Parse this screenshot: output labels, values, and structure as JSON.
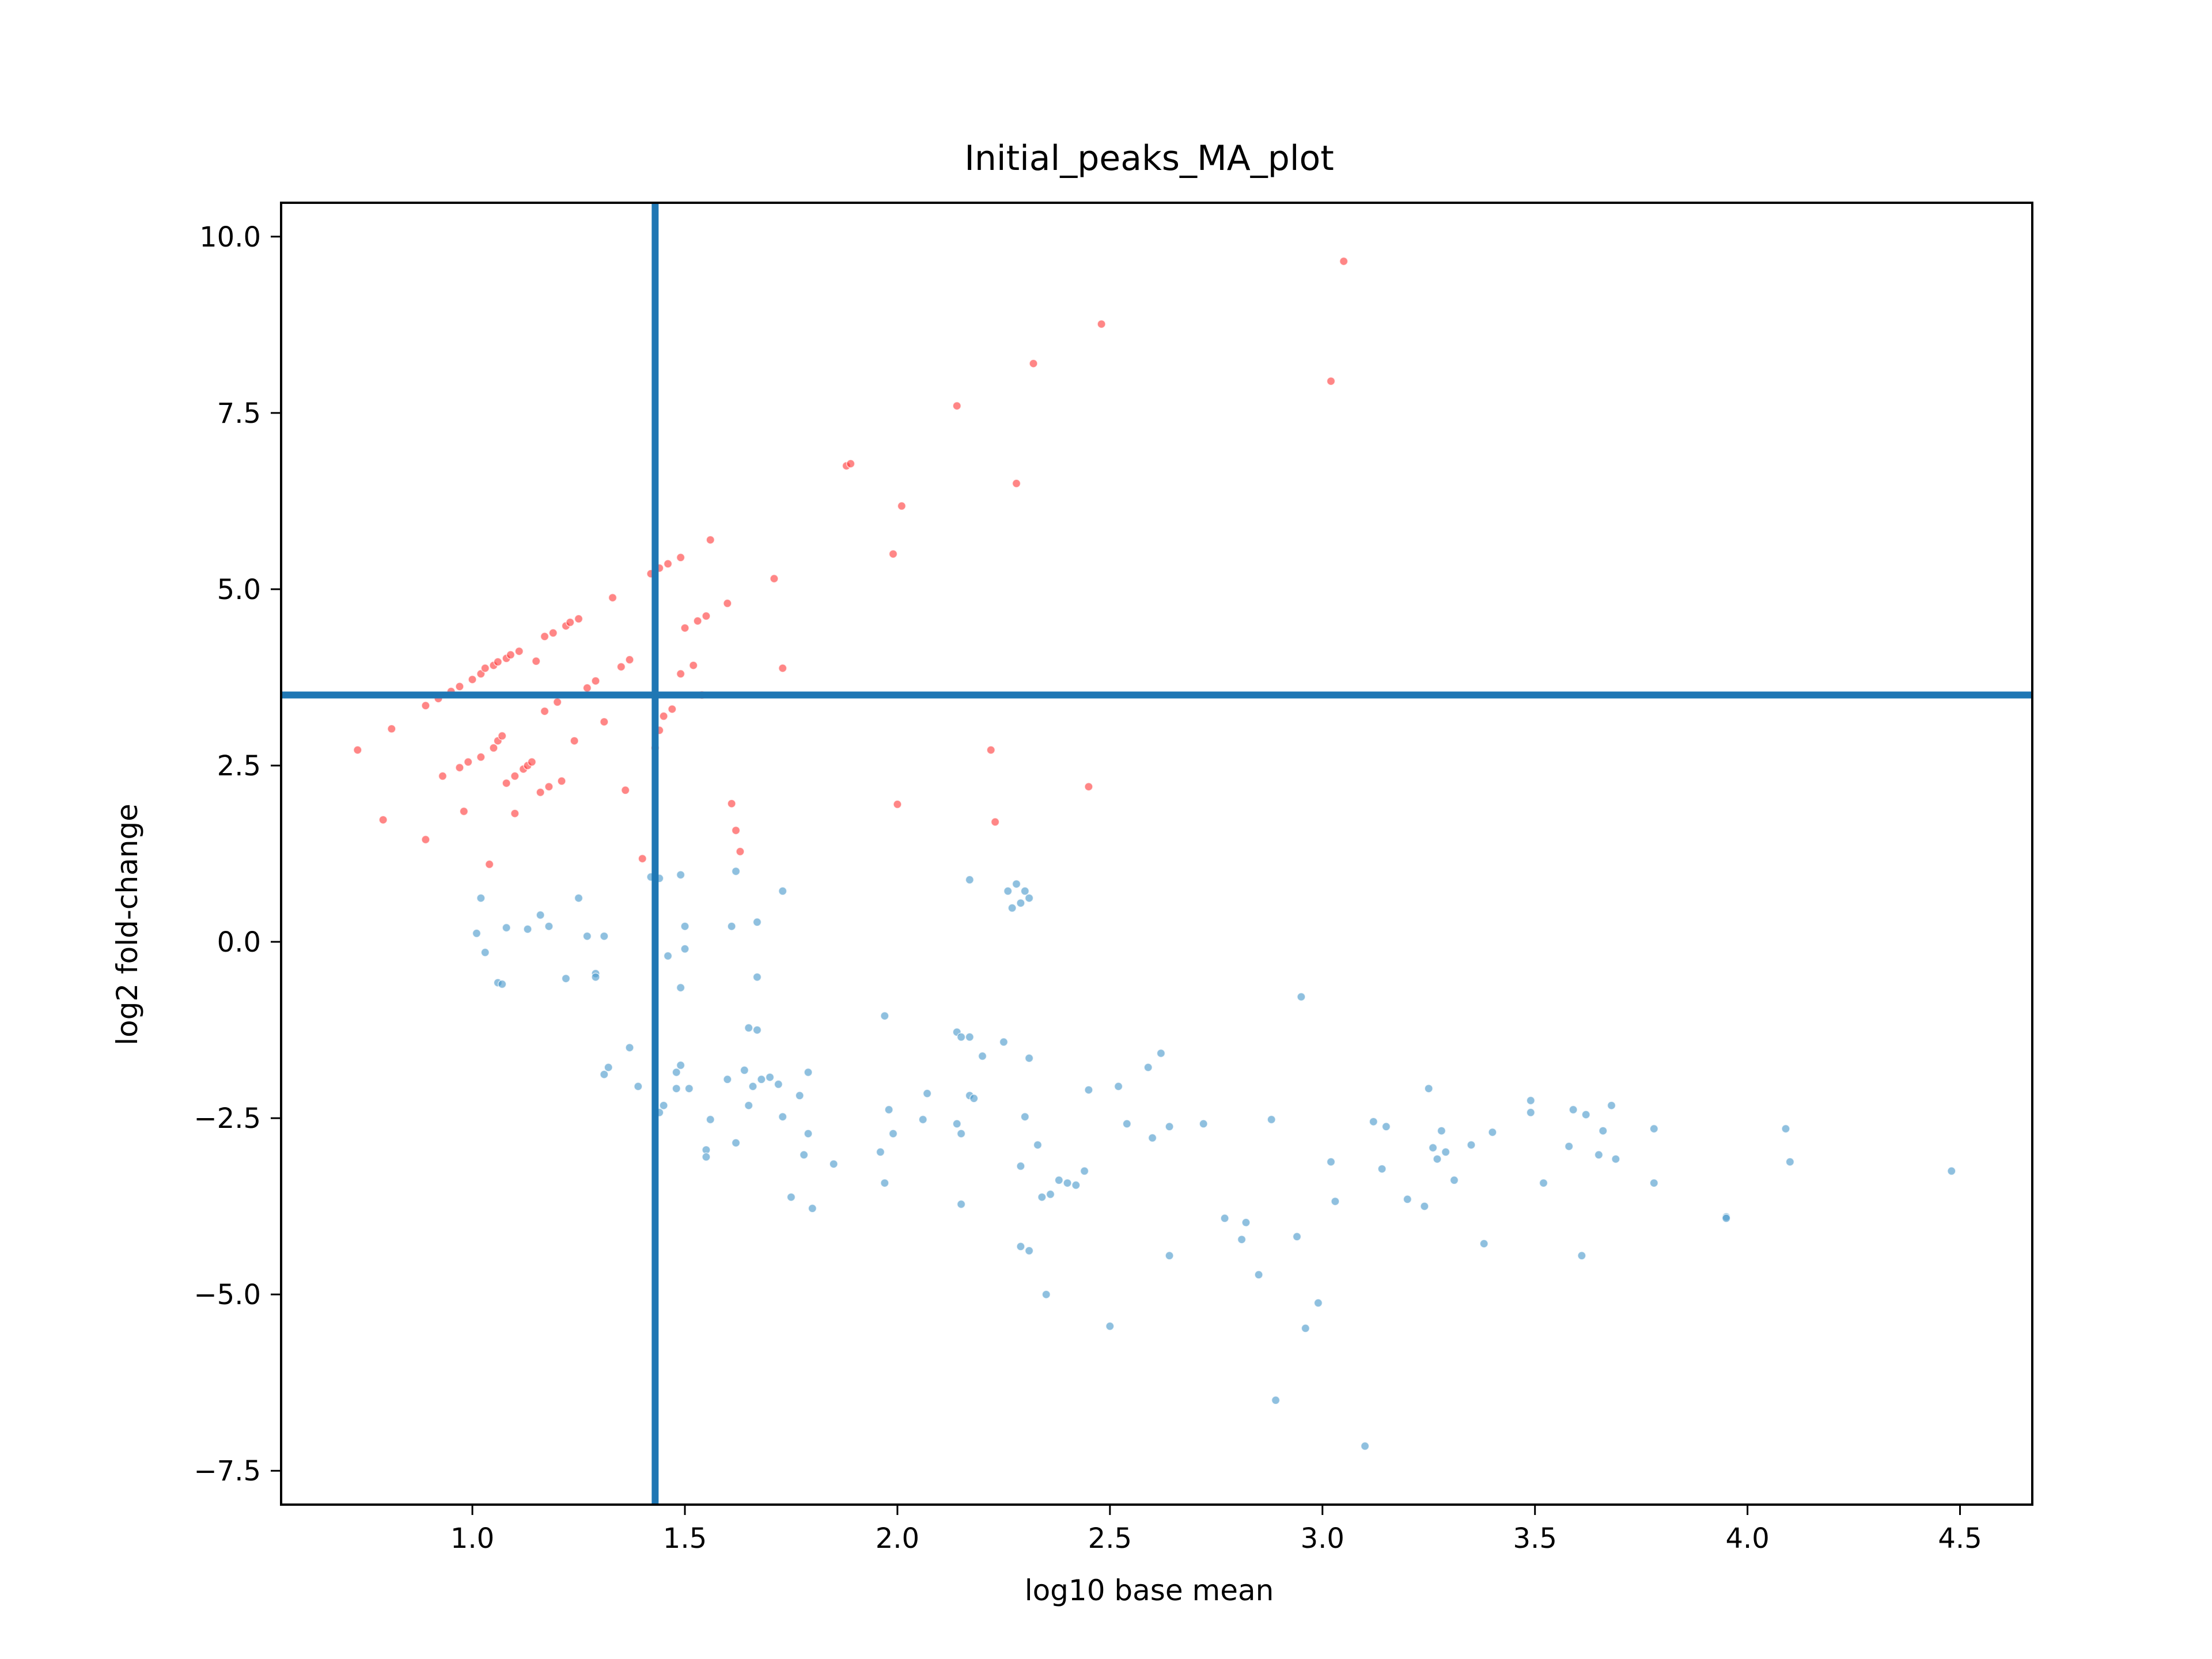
{
  "chart_data": {
    "type": "scatter",
    "title": "Initial_peaks_MA_plot",
    "xlabel": "log10 base mean",
    "ylabel": "log2 fold-change",
    "xlim": [
      0.55,
      4.67
    ],
    "ylim": [
      -7.98,
      10.48
    ],
    "xticks": [
      1.0,
      1.5,
      2.0,
      2.5,
      3.0,
      3.5,
      4.0,
      4.5
    ],
    "xtick_labels": [
      "1.0",
      "1.5",
      "2.0",
      "2.5",
      "3.0",
      "3.5",
      "4.0",
      "4.5"
    ],
    "yticks": [
      10.0,
      7.5,
      5.0,
      2.5,
      0.0,
      -2.5,
      -5.0,
      -7.5
    ],
    "ytick_labels": [
      "10.0",
      "7.5",
      "5.0",
      "2.5",
      "0.0",
      "−2.5",
      "−5.0",
      "−7.5"
    ],
    "grid": false,
    "colors": {
      "significant": "#ff3b3b",
      "nonsignificant": "#4a9acb",
      "threshold": "#1f77b4",
      "axes": "#000000"
    },
    "thresholds": {
      "vertical_x": 1.43,
      "horizontal_y": 3.5
    },
    "series": [
      {
        "color_key": "significant",
        "points": [
          [
            0.73,
            2.72
          ],
          [
            0.79,
            1.73
          ],
          [
            0.81,
            3.02
          ],
          [
            0.89,
            1.45
          ],
          [
            0.89,
            3.35
          ],
          [
            0.92,
            3.45
          ],
          [
            0.93,
            2.35
          ],
          [
            0.95,
            3.55
          ],
          [
            0.97,
            2.47
          ],
          [
            0.97,
            3.62
          ],
          [
            0.98,
            1.85
          ],
          [
            0.99,
            2.55
          ],
          [
            1.0,
            3.72
          ],
          [
            1.02,
            2.62
          ],
          [
            1.02,
            3.8
          ],
          [
            1.03,
            3.88
          ],
          [
            1.04,
            1.1
          ],
          [
            1.05,
            2.75
          ],
          [
            1.05,
            3.92
          ],
          [
            1.06,
            2.85
          ],
          [
            1.06,
            3.97
          ],
          [
            1.07,
            2.92
          ],
          [
            1.08,
            2.25
          ],
          [
            1.08,
            4.02
          ],
          [
            1.09,
            4.07
          ],
          [
            1.1,
            1.82
          ],
          [
            1.1,
            2.35
          ],
          [
            1.11,
            4.12
          ],
          [
            1.12,
            2.45
          ],
          [
            1.13,
            2.5
          ],
          [
            1.14,
            2.55
          ],
          [
            1.15,
            3.98
          ],
          [
            1.16,
            2.12
          ],
          [
            1.17,
            3.27
          ],
          [
            1.17,
            4.33
          ],
          [
            1.18,
            2.2
          ],
          [
            1.19,
            4.38
          ],
          [
            1.2,
            3.4
          ],
          [
            1.21,
            2.28
          ],
          [
            1.22,
            4.48
          ],
          [
            1.23,
            4.53
          ],
          [
            1.24,
            2.85
          ],
          [
            1.25,
            4.58
          ],
          [
            1.27,
            3.6
          ],
          [
            1.29,
            3.7
          ],
          [
            1.31,
            3.12
          ],
          [
            1.33,
            4.88
          ],
          [
            1.35,
            3.9
          ],
          [
            1.36,
            2.15
          ],
          [
            1.37,
            4.0
          ],
          [
            1.4,
            1.18
          ],
          [
            1.42,
            5.22
          ],
          [
            1.43,
            2.75
          ],
          [
            1.44,
            3.0
          ],
          [
            1.44,
            5.3
          ],
          [
            1.45,
            3.2
          ],
          [
            1.46,
            5.36
          ],
          [
            1.47,
            3.3
          ],
          [
            1.49,
            3.8
          ],
          [
            1.49,
            5.45
          ],
          [
            1.5,
            4.45
          ],
          [
            1.52,
            3.92
          ],
          [
            1.53,
            4.55
          ],
          [
            1.54,
            3.5
          ],
          [
            1.55,
            4.62
          ],
          [
            1.56,
            5.7
          ],
          [
            1.6,
            4.8
          ],
          [
            1.61,
            1.96
          ],
          [
            1.62,
            1.58
          ],
          [
            1.63,
            1.28
          ],
          [
            1.71,
            5.15
          ],
          [
            1.73,
            3.88
          ],
          [
            1.88,
            6.75
          ],
          [
            1.89,
            6.78
          ],
          [
            1.99,
            5.5
          ],
          [
            2.0,
            1.95
          ],
          [
            2.01,
            6.18
          ],
          [
            2.14,
            7.6
          ],
          [
            2.22,
            2.72
          ],
          [
            2.23,
            1.7
          ],
          [
            2.28,
            6.5
          ],
          [
            2.32,
            8.2
          ],
          [
            2.45,
            2.2
          ],
          [
            2.48,
            8.76
          ],
          [
            3.02,
            7.95
          ],
          [
            3.05,
            9.65
          ]
        ]
      },
      {
        "color_key": "nonsignificant",
        "points": [
          [
            1.01,
            0.12
          ],
          [
            1.02,
            0.62
          ],
          [
            1.03,
            -0.15
          ],
          [
            1.06,
            -0.58
          ],
          [
            1.07,
            -0.6
          ],
          [
            1.08,
            0.2
          ],
          [
            1.13,
            0.18
          ],
          [
            1.16,
            0.38
          ],
          [
            1.18,
            0.22
          ],
          [
            1.22,
            -0.52
          ],
          [
            1.25,
            0.62
          ],
          [
            1.27,
            0.08
          ],
          [
            1.29,
            -0.45
          ],
          [
            1.29,
            -0.5
          ],
          [
            1.31,
            0.08
          ],
          [
            1.31,
            -1.88
          ],
          [
            1.32,
            -1.78
          ],
          [
            1.37,
            -1.5
          ],
          [
            1.39,
            -2.05
          ],
          [
            1.42,
            0.92
          ],
          [
            1.44,
            0.9
          ],
          [
            1.44,
            -2.42
          ],
          [
            1.45,
            -2.32
          ],
          [
            1.46,
            -0.2
          ],
          [
            1.48,
            -1.85
          ],
          [
            1.48,
            -2.08
          ],
          [
            1.49,
            -1.75
          ],
          [
            1.49,
            -0.65
          ],
          [
            1.49,
            0.95
          ],
          [
            1.5,
            0.22
          ],
          [
            1.5,
            -0.1
          ],
          [
            1.51,
            -2.08
          ],
          [
            1.55,
            -2.95
          ],
          [
            1.55,
            -3.05
          ],
          [
            1.56,
            -2.52
          ],
          [
            1.6,
            -1.95
          ],
          [
            1.61,
            0.22
          ],
          [
            1.62,
            -2.85
          ],
          [
            1.62,
            1.0
          ],
          [
            1.64,
            -1.82
          ],
          [
            1.65,
            -2.32
          ],
          [
            1.65,
            -1.22
          ],
          [
            1.66,
            -2.05
          ],
          [
            1.67,
            -1.25
          ],
          [
            1.67,
            0.28
          ],
          [
            1.67,
            -0.5
          ],
          [
            1.68,
            -1.95
          ],
          [
            1.7,
            -1.92
          ],
          [
            1.72,
            -2.02
          ],
          [
            1.73,
            0.72
          ],
          [
            1.73,
            -2.48
          ],
          [
            1.75,
            -3.62
          ],
          [
            1.77,
            -2.18
          ],
          [
            1.78,
            -3.02
          ],
          [
            1.79,
            -2.72
          ],
          [
            1.79,
            -1.85
          ],
          [
            1.8,
            -3.78
          ],
          [
            1.85,
            -3.15
          ],
          [
            1.96,
            -2.98
          ],
          [
            1.97,
            -1.05
          ],
          [
            1.97,
            -3.42
          ],
          [
            1.98,
            -2.38
          ],
          [
            1.99,
            -2.72
          ],
          [
            2.06,
            -2.52
          ],
          [
            2.07,
            -2.15
          ],
          [
            2.14,
            -2.58
          ],
          [
            2.14,
            -1.28
          ],
          [
            2.15,
            -1.35
          ],
          [
            2.15,
            -2.72
          ],
          [
            2.15,
            -3.72
          ],
          [
            2.17,
            0.88
          ],
          [
            2.17,
            -1.35
          ],
          [
            2.17,
            -2.18
          ],
          [
            2.18,
            -2.22
          ],
          [
            2.2,
            -1.62
          ],
          [
            2.25,
            -1.42
          ],
          [
            2.26,
            0.72
          ],
          [
            2.27,
            0.48
          ],
          [
            2.28,
            0.82
          ],
          [
            2.29,
            0.55
          ],
          [
            2.29,
            -4.32
          ],
          [
            2.29,
            -3.18
          ],
          [
            2.3,
            -2.48
          ],
          [
            2.3,
            0.72
          ],
          [
            2.31,
            -4.38
          ],
          [
            2.31,
            0.62
          ],
          [
            2.31,
            -1.65
          ],
          [
            2.33,
            -2.88
          ],
          [
            2.34,
            -3.62
          ],
          [
            2.35,
            -5.0
          ],
          [
            2.36,
            -3.58
          ],
          [
            2.38,
            -3.38
          ],
          [
            2.4,
            -3.42
          ],
          [
            2.42,
            -3.45
          ],
          [
            2.44,
            -3.25
          ],
          [
            2.45,
            -2.1
          ],
          [
            2.5,
            -5.45
          ],
          [
            2.52,
            -2.05
          ],
          [
            2.54,
            -2.58
          ],
          [
            2.59,
            -1.78
          ],
          [
            2.6,
            -2.78
          ],
          [
            2.62,
            -1.58
          ],
          [
            2.64,
            -4.45
          ],
          [
            2.64,
            -2.62
          ],
          [
            2.72,
            -2.58
          ],
          [
            2.77,
            -3.92
          ],
          [
            2.81,
            -4.22
          ],
          [
            2.82,
            -3.98
          ],
          [
            2.85,
            -4.72
          ],
          [
            2.88,
            -2.52
          ],
          [
            2.89,
            -6.5
          ],
          [
            2.94,
            -4.18
          ],
          [
            2.95,
            -0.78
          ],
          [
            2.96,
            -5.48
          ],
          [
            2.99,
            -5.12
          ],
          [
            3.02,
            -3.12
          ],
          [
            3.03,
            -3.68
          ],
          [
            3.1,
            -7.15
          ],
          [
            3.12,
            -2.55
          ],
          [
            3.14,
            -3.22
          ],
          [
            3.15,
            -2.62
          ],
          [
            3.2,
            -3.65
          ],
          [
            3.24,
            -3.75
          ],
          [
            3.25,
            -2.08
          ],
          [
            3.26,
            -2.92
          ],
          [
            3.27,
            -3.08
          ],
          [
            3.28,
            -2.68
          ],
          [
            3.29,
            -2.98
          ],
          [
            3.31,
            -3.38
          ],
          [
            3.35,
            -2.88
          ],
          [
            3.38,
            -4.28
          ],
          [
            3.4,
            -2.7
          ],
          [
            3.49,
            -2.42
          ],
          [
            3.49,
            -2.25
          ],
          [
            3.52,
            -3.42
          ],
          [
            3.58,
            -2.9
          ],
          [
            3.59,
            -2.38
          ],
          [
            3.61,
            -4.45
          ],
          [
            3.62,
            -2.45
          ],
          [
            3.65,
            -3.02
          ],
          [
            3.66,
            -2.68
          ],
          [
            3.68,
            -2.32
          ],
          [
            3.69,
            -3.08
          ],
          [
            3.78,
            -2.65
          ],
          [
            3.78,
            -3.42
          ],
          [
            3.95,
            -3.9
          ],
          [
            3.95,
            -3.92
          ],
          [
            4.09,
            -2.65
          ],
          [
            4.1,
            -3.12
          ],
          [
            4.48,
            -3.25
          ]
        ]
      }
    ]
  }
}
